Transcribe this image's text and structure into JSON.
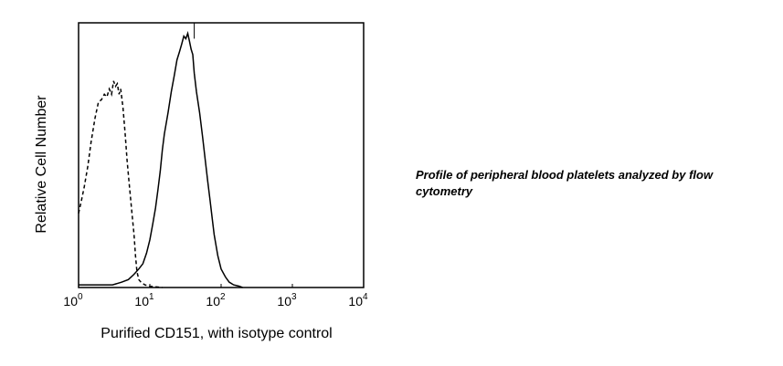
{
  "caption": "Profile of peripheral blood platelets analyzed by flow cytometry",
  "chart_data": {
    "type": "line",
    "title": "",
    "xlabel": "Purified CD151, with isotype control",
    "ylabel": "Relative Cell Number",
    "xscale": "log",
    "xlim": [
      1,
      10000
    ],
    "ylim": [
      0,
      100
    ],
    "grid": false,
    "legend": "none",
    "x_ticks": [
      {
        "value": 1,
        "base": "10",
        "exp": "0"
      },
      {
        "value": 10,
        "base": "10",
        "exp": "1"
      },
      {
        "value": 100,
        "base": "10",
        "exp": "2"
      },
      {
        "value": 1000,
        "base": "10",
        "exp": "3"
      },
      {
        "value": 10000,
        "base": "10",
        "exp": "4"
      }
    ],
    "series": [
      {
        "style": "dashed",
        "color": "#000000",
        "points": [
          [
            1.0,
            28
          ],
          [
            1.1,
            33
          ],
          [
            1.2,
            38
          ],
          [
            1.35,
            46
          ],
          [
            1.5,
            55
          ],
          [
            1.7,
            64
          ],
          [
            1.9,
            70
          ],
          [
            2.1,
            71
          ],
          [
            2.3,
            73
          ],
          [
            2.5,
            72
          ],
          [
            2.7,
            75
          ],
          [
            2.9,
            73
          ],
          [
            3.1,
            78
          ],
          [
            3.3,
            76
          ],
          [
            3.5,
            77
          ],
          [
            3.7,
            73
          ],
          [
            3.9,
            75
          ],
          [
            4.2,
            68
          ],
          [
            4.5,
            58
          ],
          [
            4.8,
            48
          ],
          [
            5.1,
            40
          ],
          [
            5.4,
            33
          ],
          [
            5.7,
            26
          ],
          [
            6.0,
            20
          ],
          [
            6.3,
            12
          ],
          [
            6.6,
            6
          ],
          [
            7.0,
            3
          ],
          [
            7.5,
            2
          ],
          [
            8.5,
            1
          ],
          [
            10,
            0.5
          ],
          [
            15,
            0
          ]
        ]
      },
      {
        "style": "solid",
        "color": "#000000",
        "points": [
          [
            1.0,
            1
          ],
          [
            3.0,
            1
          ],
          [
            4.0,
            2
          ],
          [
            5.0,
            3
          ],
          [
            6.0,
            5
          ],
          [
            7.0,
            7
          ],
          [
            8.0,
            9
          ],
          [
            9.0,
            13
          ],
          [
            10,
            18
          ],
          [
            11,
            24
          ],
          [
            12,
            30
          ],
          [
            13,
            37
          ],
          [
            14,
            44
          ],
          [
            15,
            52
          ],
          [
            16,
            58
          ],
          [
            18,
            66
          ],
          [
            20,
            74
          ],
          [
            22,
            80
          ],
          [
            24,
            86
          ],
          [
            26,
            89
          ],
          [
            28,
            92
          ],
          [
            30,
            95
          ],
          [
            32,
            94
          ],
          [
            34,
            96
          ],
          [
            36,
            93
          ],
          [
            38,
            90
          ],
          [
            40,
            88
          ],
          [
            42,
            81
          ],
          [
            45,
            74
          ],
          [
            50,
            66
          ],
          [
            55,
            57
          ],
          [
            60,
            48
          ],
          [
            65,
            40
          ],
          [
            70,
            33
          ],
          [
            75,
            26
          ],
          [
            80,
            20
          ],
          [
            90,
            12
          ],
          [
            100,
            7
          ],
          [
            115,
            4
          ],
          [
            130,
            2
          ],
          [
            150,
            1
          ],
          [
            180,
            0.5
          ],
          [
            200,
            0
          ]
        ]
      }
    ],
    "marker_line": {
      "x": 42,
      "color": "#000000"
    }
  }
}
